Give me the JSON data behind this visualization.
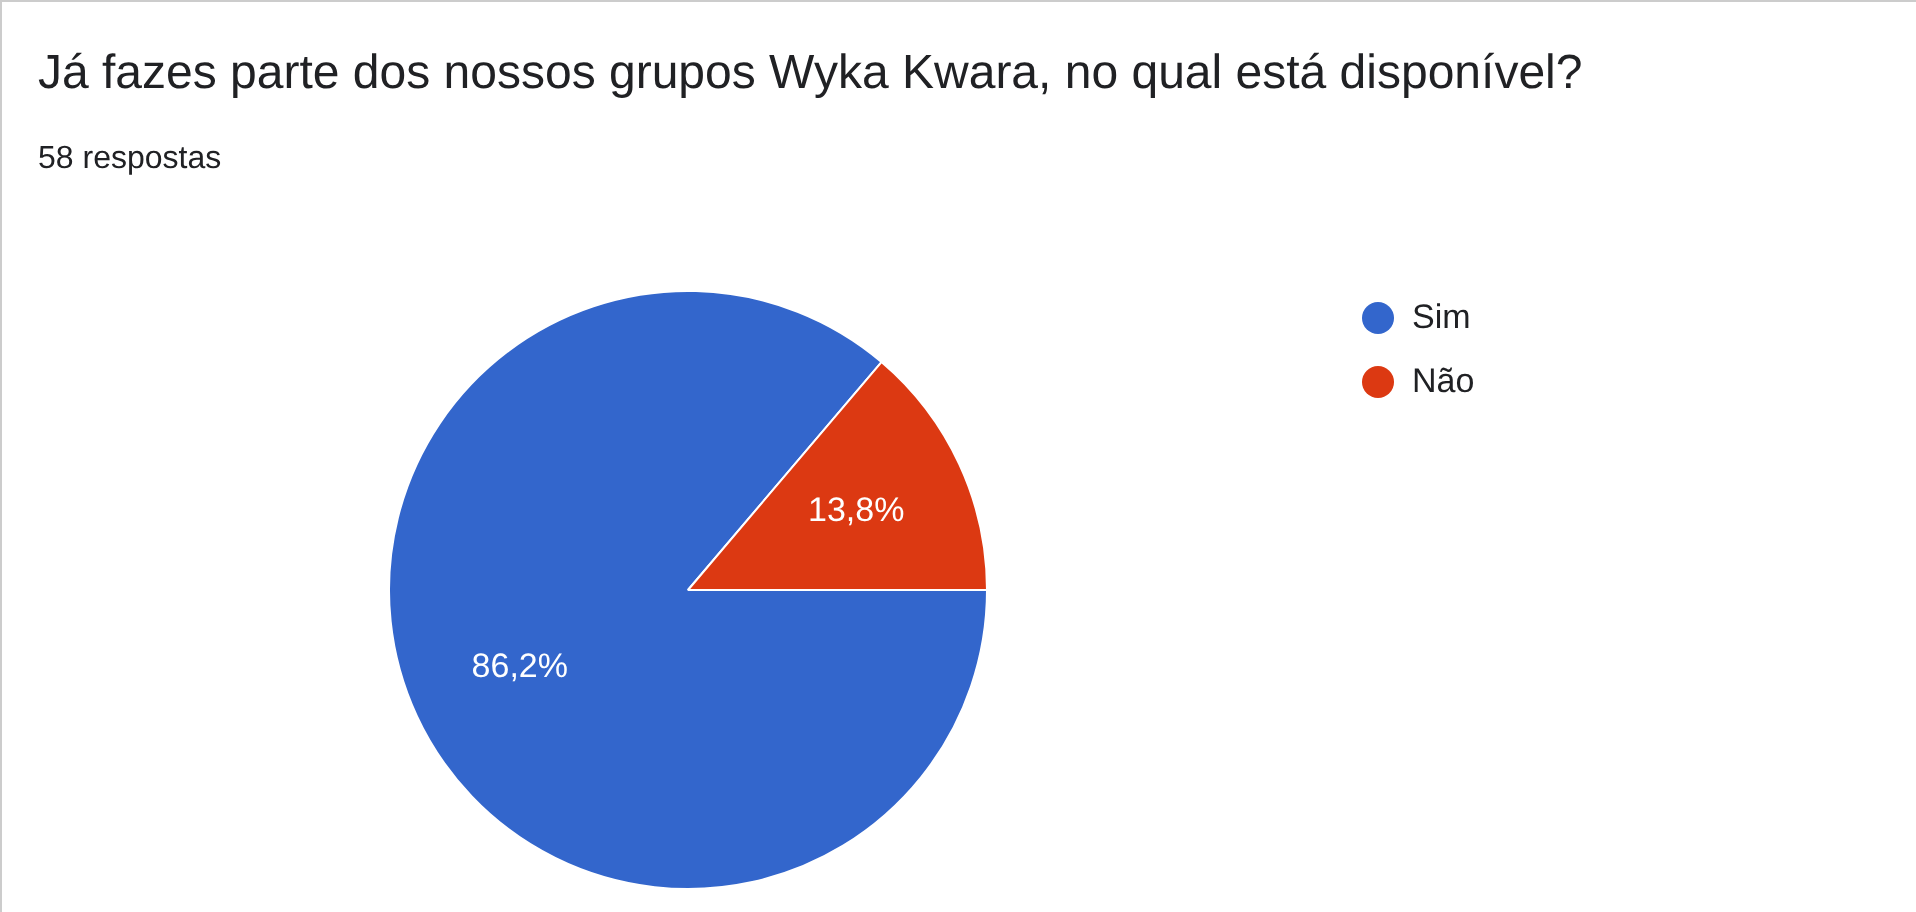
{
  "chart_data": {
    "type": "pie",
    "title": "Já fazes parte dos nossos grupos Wyka Kwara, no qual está disponível?",
    "subtitle": "58 respostas",
    "categories": [
      "Sim",
      "Não"
    ],
    "values": [
      86.2,
      13.8
    ],
    "colors": [
      "#3366cc",
      "#dc3912"
    ],
    "value_labels": [
      "86,2%",
      "13,8%"
    ],
    "legend": "right"
  }
}
